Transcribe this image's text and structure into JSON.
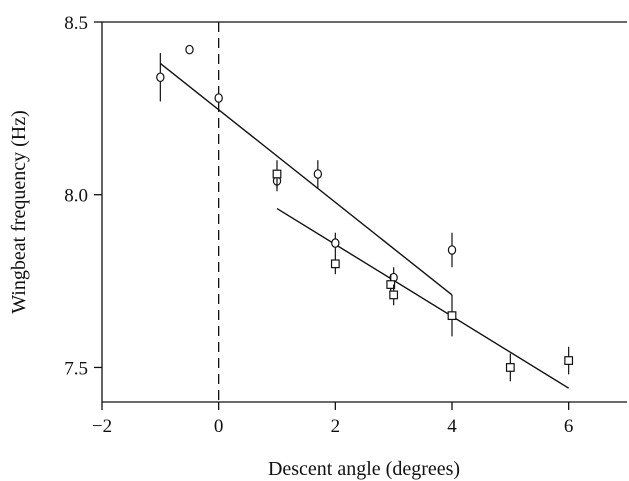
{
  "chart_data": {
    "type": "scatter",
    "xlabel": "Descent angle (degrees)",
    "ylabel": "Wingbeat frequency (Hz)",
    "xlim": [
      -2,
      7
    ],
    "ylim": [
      7.4,
      8.5
    ],
    "x_ticks": [
      -2,
      0,
      2,
      4,
      6
    ],
    "x_tick_labels": [
      "−2",
      "0",
      "2",
      "4",
      "6"
    ],
    "y_ticks": [
      7.5,
      8.0,
      8.5
    ],
    "y_tick_labels": [
      "7.5",
      "8.0",
      "8.5"
    ],
    "reference_line": {
      "x": 0,
      "style": "dashed"
    },
    "series": [
      {
        "marker": "circle",
        "points": [
          {
            "x": -1.0,
            "y": 8.34,
            "err": 0.07
          },
          {
            "x": -0.5,
            "y": 8.42,
            "err": 0.0
          },
          {
            "x": 0.0,
            "y": 8.28,
            "err": 0.0
          },
          {
            "x": 1.0,
            "y": 8.04,
            "err": 0.03
          },
          {
            "x": 1.7,
            "y": 8.06,
            "err": 0.04
          },
          {
            "x": 2.0,
            "y": 7.86,
            "err": 0.03
          },
          {
            "x": 3.0,
            "y": 7.76,
            "err": 0.03
          },
          {
            "x": 4.0,
            "y": 7.84,
            "err": 0.05
          }
        ],
        "fit": {
          "x": [
            -1.0,
            4.0
          ],
          "y": [
            8.38,
            7.71
          ]
        }
      },
      {
        "marker": "square",
        "points": [
          {
            "x": 1.0,
            "y": 8.06,
            "err": 0.04
          },
          {
            "x": 2.0,
            "y": 7.8,
            "err": 0.03
          },
          {
            "x": 2.95,
            "y": 7.74,
            "err": 0.03
          },
          {
            "x": 3.0,
            "y": 7.71,
            "err": 0.03
          },
          {
            "x": 4.0,
            "y": 7.65,
            "err": 0.06
          },
          {
            "x": 5.0,
            "y": 7.5,
            "err": 0.04
          },
          {
            "x": 6.0,
            "y": 7.52,
            "err": 0.04
          }
        ],
        "fit": {
          "x": [
            1.0,
            6.0
          ],
          "y": [
            7.96,
            7.44
          ]
        }
      }
    ],
    "grid": false,
    "colors": {
      "ink": "#111111",
      "background": "#ffffff"
    }
  }
}
